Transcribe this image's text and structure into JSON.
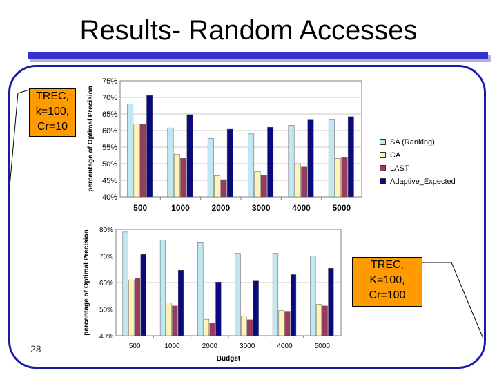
{
  "slide": {
    "title": "Results- Random Accesses",
    "number": "28",
    "callout_top": [
      "TREC,",
      "k=100,",
      "Cr=10"
    ],
    "callout_bottom": [
      "TREC,",
      "K=100,",
      "Cr=100"
    ]
  },
  "colors": {
    "title_bar": "#3333cc",
    "frame": "#1a1aa6",
    "callout": "#ff9a00",
    "SA": "#bfe8f2",
    "CA": "#fff4b8",
    "LAST": "#9a3a5c",
    "AE": "#0a0a80"
  },
  "legend": {
    "items": [
      {
        "label": "SA (Ranking)",
        "color": "#bfe8f2"
      },
      {
        "label": "CA",
        "color": "#fff4b8"
      },
      {
        "label": "LAST",
        "color": "#9a3a5c"
      },
      {
        "label": "Adaptive_Expected",
        "color": "#0a0a80"
      }
    ]
  },
  "chart_data": [
    {
      "type": "bar",
      "categories": [
        "500",
        "1000",
        "2000",
        "3000",
        "4000",
        "5000"
      ],
      "ylabel": "percentage of Optimal Precision",
      "xlabel": "",
      "ylim": [
        40,
        75
      ],
      "yticks": [
        "40%",
        "45%",
        "50%",
        "55%",
        "60%",
        "65%",
        "70%",
        "75%"
      ],
      "series": [
        {
          "name": "SA (Ranking)",
          "values": [
            68,
            60.8,
            57.6,
            59,
            61.6,
            63.2
          ]
        },
        {
          "name": "CA",
          "values": [
            62,
            52.8,
            46.4,
            47.6,
            50,
            51.6
          ]
        },
        {
          "name": "LAST",
          "values": [
            62,
            51.6,
            45.2,
            46.4,
            49,
            51.8
          ]
        },
        {
          "name": "Adaptive_Expected",
          "values": [
            70.6,
            64.8,
            60.4,
            61,
            63.2,
            64.2
          ]
        }
      ]
    },
    {
      "type": "bar",
      "categories": [
        "500",
        "1000",
        "2000",
        "3000",
        "4000",
        "5000"
      ],
      "ylabel": "percentage of Optimal Precision",
      "xlabel": "Budget",
      "ylim": [
        40,
        80
      ],
      "yticks": [
        "40%",
        "50%",
        "60%",
        "70%",
        "80%"
      ],
      "series": [
        {
          "name": "SA (Ranking)",
          "values": [
            79,
            76,
            75,
            71,
            71,
            70
          ]
        },
        {
          "name": "CA",
          "values": [
            61,
            52.4,
            46.2,
            47.4,
            49.5,
            51.8
          ]
        },
        {
          "name": "LAST",
          "values": [
            61.6,
            51.2,
            44.8,
            46,
            49.2,
            51.2
          ]
        },
        {
          "name": "Adaptive_Expected",
          "values": [
            70.6,
            64.6,
            60.2,
            60.6,
            63,
            65.4
          ]
        }
      ]
    }
  ]
}
